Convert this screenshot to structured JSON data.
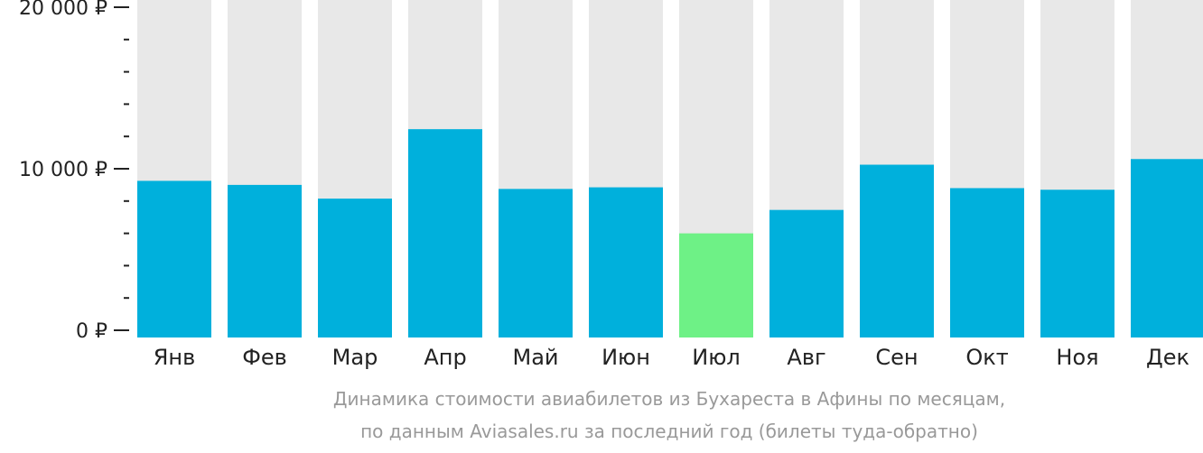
{
  "chart_data": {
    "type": "bar",
    "categories": [
      "Янв",
      "Фев",
      "Мар",
      "Апр",
      "Май",
      "Июн",
      "Июл",
      "Авг",
      "Сен",
      "Окт",
      "Ноя",
      "Дек"
    ],
    "values": [
      9250,
      9000,
      8150,
      12450,
      8750,
      8850,
      6000,
      7450,
      10250,
      8800,
      8700,
      10600
    ],
    "ylim": [
      0,
      20000
    ],
    "y_major_ticks": [
      {
        "value": 0,
        "label": "0 ₽"
      },
      {
        "value": 10000,
        "label": "10 000 ₽"
      },
      {
        "value": 20000,
        "label": "20 000 ₽"
      }
    ],
    "y_minor_step": 2000,
    "highlight_index": 6,
    "grid": false,
    "legend": "none"
  },
  "caption": {
    "line1": "Динамика стоимости авиабилетов из Бухареста в Афины по месяцам,",
    "line2": "по данным Aviasales.ru за последний год (билеты туда-обратно)"
  },
  "colors": {
    "bar": "#00b0dc",
    "bar_highlight": "#6ef186",
    "bar_background": "#e8e8e8",
    "axis": "#222222",
    "caption": "#999999"
  }
}
